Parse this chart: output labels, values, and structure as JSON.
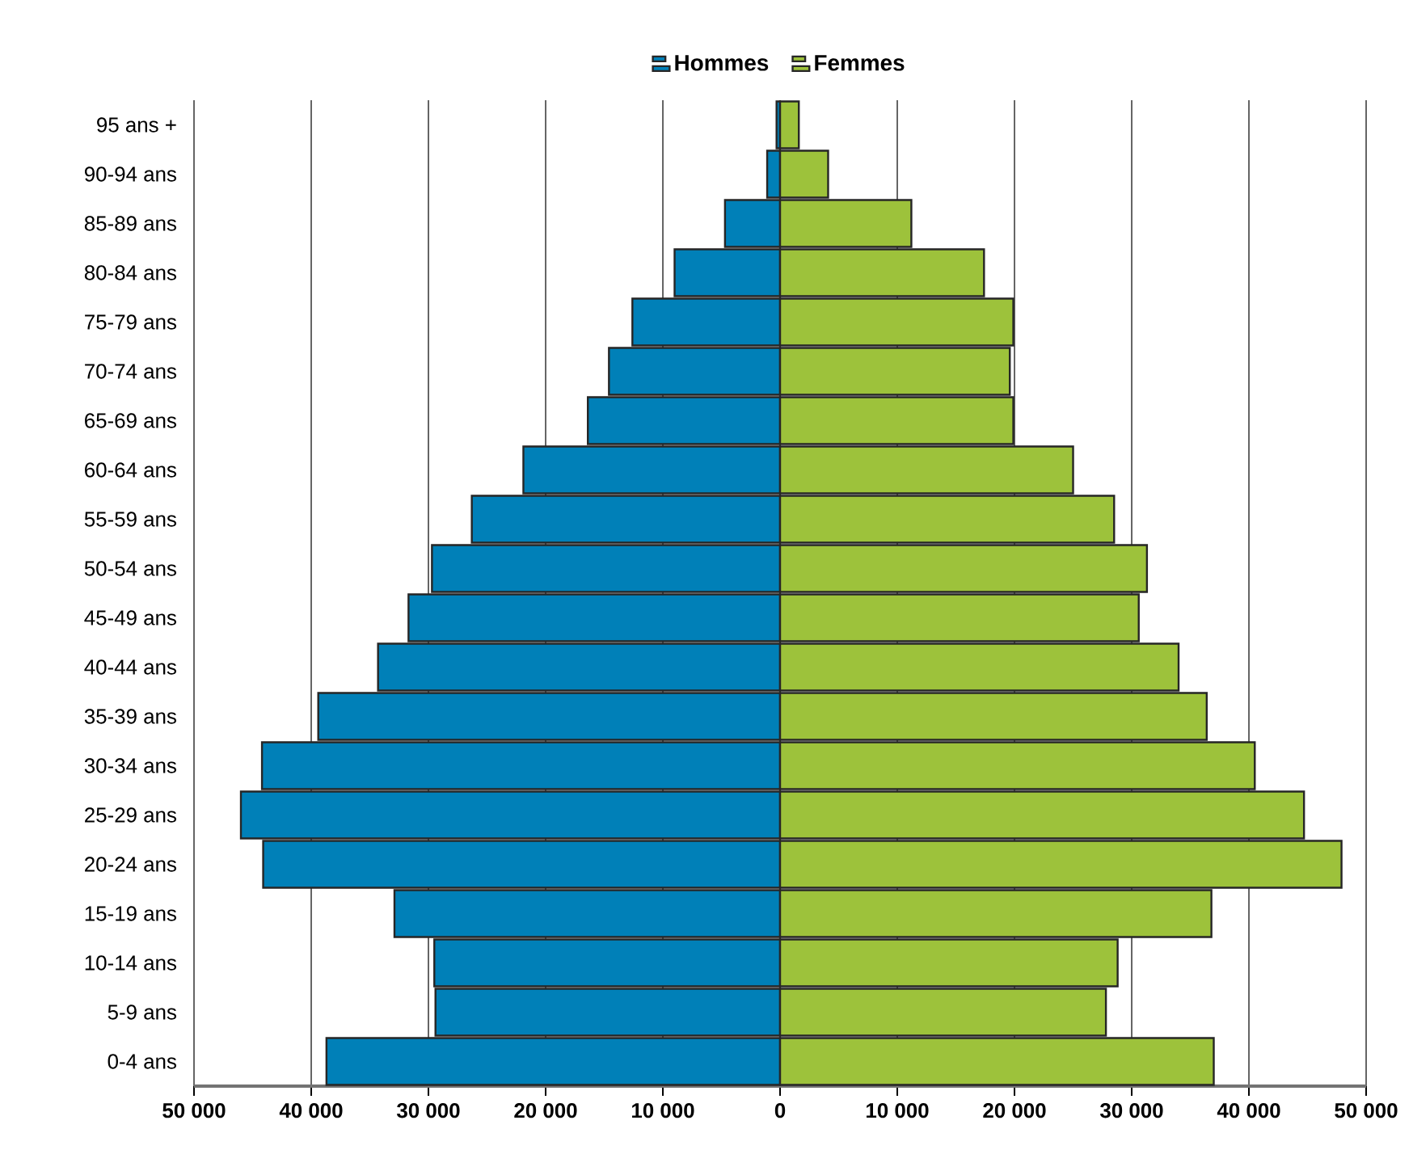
{
  "chart_data": {
    "type": "bar",
    "orientation": "horizontal",
    "categories": [
      "95 ans +",
      "90-94 ans",
      "85-89 ans",
      "80-84 ans",
      "75-79 ans",
      "70-74 ans",
      "65-69 ans",
      "60-64 ans",
      "55-59 ans",
      "50-54 ans",
      "45-49 ans",
      "40-44 ans",
      "35-39 ans",
      "30-34 ans",
      "25-29 ans",
      "20-24 ans",
      "15-19 ans",
      "10-14 ans",
      "5-9 ans",
      "0-4 ans"
    ],
    "series": [
      {
        "name": "Hommes",
        "color": "#0080b8",
        "values": [
          -300,
          -1100,
          -4700,
          -9000,
          -12600,
          -14600,
          -16400,
          -21900,
          -26300,
          -29700,
          -31700,
          -34300,
          -39400,
          -44200,
          -46000,
          -44100,
          -32900,
          -29500,
          -29400,
          -38700
        ]
      },
      {
        "name": "Femmes",
        "color": "#9dc23b",
        "values": [
          1600,
          4100,
          11200,
          17400,
          19900,
          19600,
          19900,
          25000,
          28500,
          31300,
          30600,
          34000,
          36400,
          40500,
          44700,
          47900,
          36800,
          28800,
          27800,
          37000
        ]
      }
    ],
    "xlim": [
      -50000,
      50000
    ],
    "xticks": [
      {
        "value": -50000,
        "label": "50 000"
      },
      {
        "value": -40000,
        "label": "40 000"
      },
      {
        "value": -30000,
        "label": "30 000"
      },
      {
        "value": -20000,
        "label": "20 000"
      },
      {
        "value": -10000,
        "label": "10 000"
      },
      0,
      {
        "value": 10000,
        "label": "10 000"
      },
      {
        "value": 20000,
        "label": "20 000"
      },
      {
        "value": 30000,
        "label": "30 000"
      },
      {
        "value": 40000,
        "label": "40 000"
      },
      {
        "value": 50000,
        "label": "50 000"
      }
    ],
    "stacked": true,
    "grid": "x",
    "legend": "top"
  }
}
